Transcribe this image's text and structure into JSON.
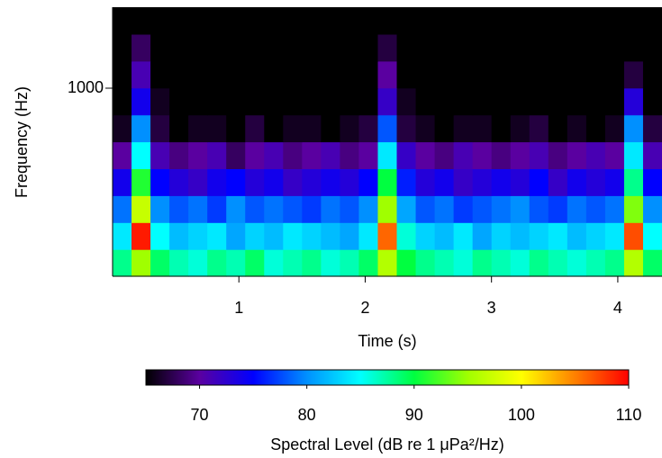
{
  "chart_data": {
    "type": "spectrogram",
    "xlabel": "Time (s)",
    "ylabel": "Frequency (Hz)",
    "xlim": [
      0,
      4.35
    ],
    "xticks": [
      1,
      2,
      3,
      4
    ],
    "ylim": [
      200,
      2000
    ],
    "yticks": [
      1000
    ],
    "yscale": "log",
    "colormap": [
      "#000000",
      "#5a00a0",
      "#0000ff",
      "#0090ff",
      "#00ffff",
      "#00ff40",
      "#a0ff00",
      "#ffff00",
      "#ff8000",
      "#ff0000"
    ],
    "colorbar": {
      "lim": [
        65,
        110
      ],
      "ticks": [
        70,
        80,
        90,
        100,
        110
      ],
      "label": "Spectral Level (dB re 1 μPa²/Hz)"
    },
    "z": [
      [
        88,
        95,
        89,
        87,
        86,
        88,
        87,
        89,
        86,
        87,
        88,
        86,
        87,
        89,
        96,
        90,
        88,
        87,
        86,
        88,
        87,
        86,
        88,
        87,
        86,
        87,
        88,
        96,
        89
      ],
      [
        84,
        109,
        85,
        82,
        83,
        84,
        81,
        83,
        82,
        84,
        83,
        82,
        81,
        84,
        106,
        86,
        83,
        82,
        84,
        81,
        83,
        82,
        83,
        84,
        82,
        83,
        84,
        107,
        85
      ],
      [
        79,
        97,
        80,
        78,
        79,
        77,
        80,
        78,
        79,
        78,
        77,
        79,
        78,
        80,
        95,
        81,
        78,
        79,
        77,
        78,
        79,
        80,
        78,
        77,
        79,
        78,
        79,
        94,
        80
      ],
      [
        74,
        91,
        75,
        73,
        72,
        74,
        75,
        73,
        74,
        72,
        73,
        74,
        73,
        75,
        90,
        76,
        73,
        74,
        72,
        73,
        74,
        73,
        75,
        72,
        74,
        73,
        74,
        88,
        75
      ],
      [
        70,
        85,
        71,
        69,
        70,
        71,
        68,
        70,
        71,
        69,
        70,
        71,
        69,
        70,
        84,
        72,
        70,
        69,
        71,
        70,
        69,
        70,
        71,
        69,
        70,
        71,
        70,
        84,
        71
      ],
      [
        66,
        80,
        67,
        65,
        66,
        66,
        65,
        67,
        65,
        66,
        66,
        65,
        66,
        67,
        78,
        67,
        66,
        65,
        66,
        66,
        65,
        66,
        67,
        65,
        66,
        65,
        66,
        80,
        67
      ],
      [
        65,
        74,
        66,
        65,
        65,
        65,
        65,
        65,
        65,
        65,
        65,
        65,
        65,
        65,
        72,
        66,
        65,
        65,
        65,
        65,
        65,
        65,
        65,
        65,
        65,
        65,
        65,
        73,
        65
      ],
      [
        65,
        71,
        65,
        65,
        65,
        65,
        65,
        65,
        65,
        65,
        65,
        65,
        65,
        65,
        70,
        65,
        65,
        65,
        65,
        65,
        65,
        65,
        65,
        65,
        65,
        65,
        65,
        67,
        65
      ],
      [
        65,
        68,
        65,
        65,
        65,
        65,
        65,
        65,
        65,
        65,
        65,
        65,
        65,
        65,
        67,
        65,
        65,
        65,
        65,
        65,
        65,
        65,
        65,
        65,
        65,
        65,
        65,
        65,
        65
      ],
      [
        65,
        65,
        65,
        65,
        65,
        65,
        65,
        65,
        65,
        65,
        65,
        65,
        65,
        65,
        65,
        65,
        65,
        65,
        65,
        65,
        65,
        65,
        65,
        65,
        65,
        65,
        65,
        65,
        65
      ]
    ]
  }
}
